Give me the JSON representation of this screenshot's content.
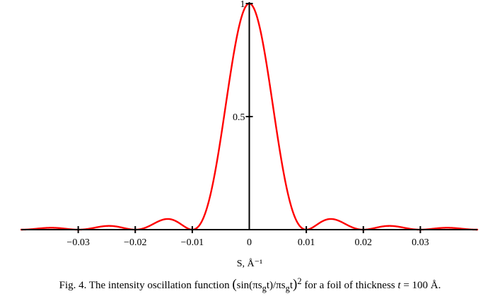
{
  "chart_data": {
    "type": "line",
    "title": "",
    "xlabel": "S, Å⁻¹",
    "ylabel": "",
    "xlim": [
      -0.04,
      0.04
    ],
    "ylim": [
      0,
      1
    ],
    "grid": false,
    "legend": "none",
    "x_ticks": [
      {
        "value": -0.03,
        "label": "−0.03"
      },
      {
        "value": -0.02,
        "label": "−0.02"
      },
      {
        "value": -0.01,
        "label": "−0.01"
      },
      {
        "value": 0,
        "label": "0"
      },
      {
        "value": 0.01,
        "label": "0.01"
      },
      {
        "value": 0.02,
        "label": "0.02"
      },
      {
        "value": 0.03,
        "label": "0.03"
      }
    ],
    "y_ticks": [
      {
        "value": 0.5,
        "label": "0.5"
      },
      {
        "value": 1,
        "label": "1"
      }
    ],
    "series": [
      {
        "function": "(sin(pi*s*t)/(pi*s*t))^2",
        "t": 100,
        "color": "#ff0000"
      }
    ]
  },
  "caption": {
    "prefix": "Fig. 4.  The intensity oscillation function ",
    "math_open": "(",
    "math_body": "sin(πs",
    "sub1": "g",
    "math_mid": "t)/πs",
    "sub2": "g",
    "math_end": "t",
    "math_close": ")",
    "sup": "2",
    "suffix": " for a foil of thickness ",
    "t_var": "t",
    "t_value": " = 100 Å."
  }
}
